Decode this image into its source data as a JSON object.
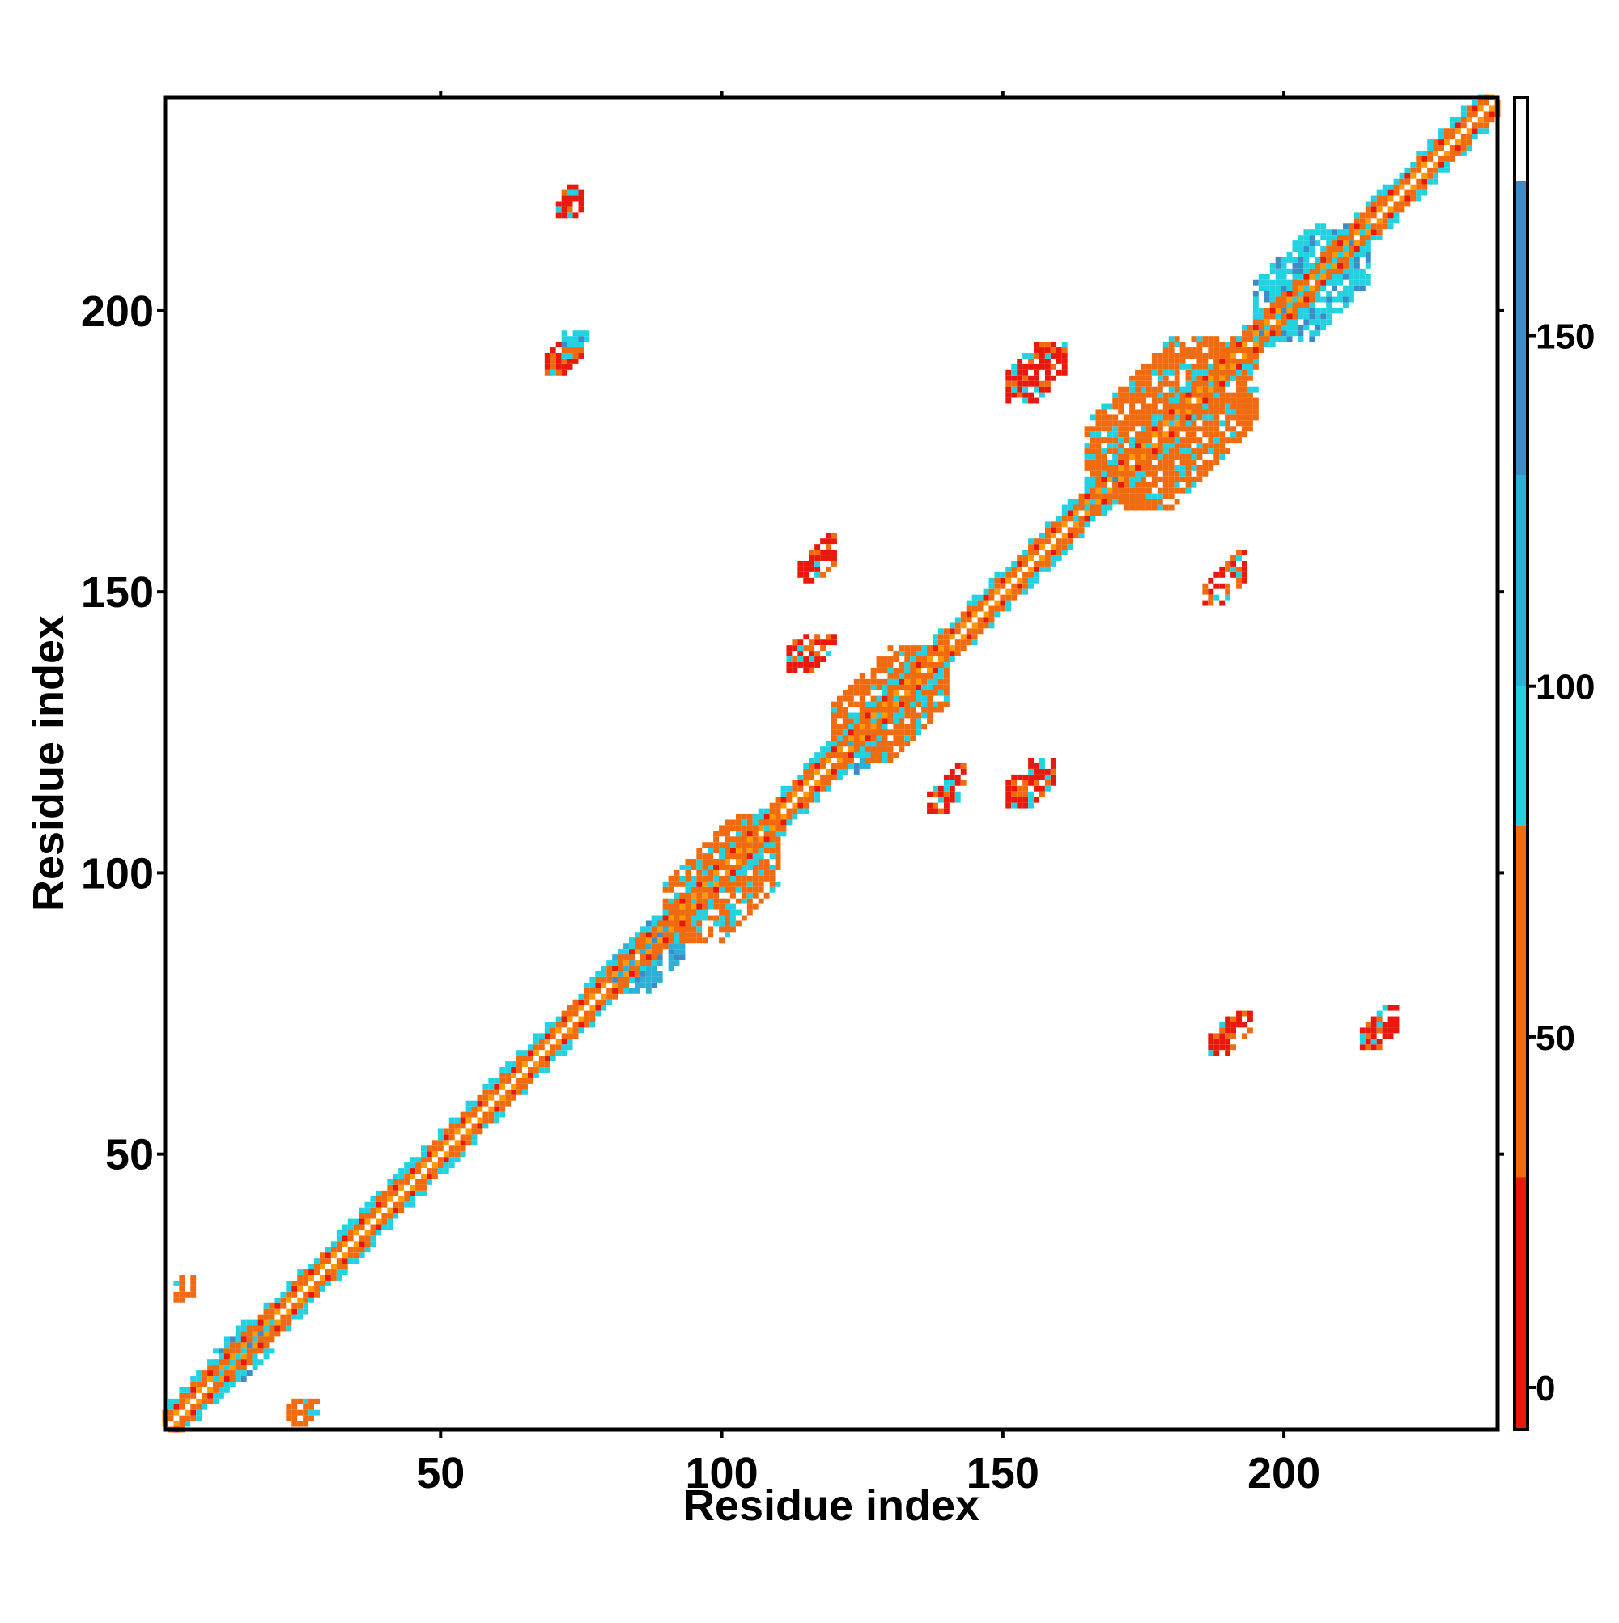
{
  "chart_data": {
    "type": "heatmap",
    "title": "",
    "xlabel": "Residue index",
    "ylabel": "Residue index",
    "xlim": [
      1,
      238
    ],
    "ylim": [
      1,
      238
    ],
    "xticks": [
      50,
      100,
      150,
      200
    ],
    "yticks": [
      50,
      100,
      150,
      200
    ],
    "colorbar": {
      "range": [
        -6,
        184
      ],
      "ticks": [
        0,
        50,
        100,
        150
      ],
      "bands": [
        {
          "from": -6,
          "to": 30,
          "color": "#e8180c"
        },
        {
          "from": 30,
          "to": 80,
          "color": "#f06a10"
        },
        {
          "from": 80,
          "to": 100,
          "color": "#22d2e0"
        },
        {
          "from": 100,
          "to": 130,
          "color": "#2cb0d8"
        },
        {
          "from": 130,
          "to": 172,
          "color": "#3c8cc8"
        },
        {
          "from": 172,
          "to": 184,
          "color": "#ffffff"
        }
      ]
    },
    "diagonal": {
      "from": 1,
      "to": 238,
      "colors": [
        "#e8180c",
        "#f06a10",
        "#ff9a00",
        "#22d2e0"
      ]
    },
    "off_diagonal_features": [
      {
        "x": [
          71,
          75
        ],
        "y": [
          217,
          222
        ],
        "value": 20
      },
      {
        "x": [
          69,
          75
        ],
        "y": [
          189,
          194
        ],
        "value": 15
      },
      {
        "x": [
          72,
          76
        ],
        "y": [
          194,
          196
        ],
        "value": 90
      },
      {
        "x": [
          3,
          6
        ],
        "y": [
          24,
          28
        ],
        "value": 40
      },
      {
        "x": [
          23,
          28
        ],
        "y": [
          2,
          6
        ],
        "value": 40
      },
      {
        "x": [
          114,
          120
        ],
        "y": [
          152,
          160
        ],
        "value": 15
      },
      {
        "x": [
          112,
          120
        ],
        "y": [
          136,
          142
        ],
        "value": 25
      },
      {
        "x": [
          137,
          143
        ],
        "y": [
          111,
          119
        ],
        "value": 20
      },
      {
        "x": [
          151,
          159
        ],
        "y": [
          112,
          120
        ],
        "value": 15
      },
      {
        "x": [
          151,
          161
        ],
        "y": [
          184,
          194
        ],
        "value": 20
      },
      {
        "x": [
          186,
          193
        ],
        "y": [
          148,
          158
        ],
        "value": 15
      },
      {
        "x": [
          187,
          194
        ],
        "y": [
          68,
          75
        ],
        "value": 15
      },
      {
        "x": [
          214,
          220
        ],
        "y": [
          69,
          76
        ],
        "value": 20
      },
      {
        "x": [
          81,
          93
        ],
        "y": [
          79,
          92
        ],
        "value": 110
      },
      {
        "x": [
          121,
          129
        ],
        "y": [
          118,
          127
        ],
        "value": 110
      },
      {
        "x": [
          90,
          110
        ],
        "y": [
          88,
          110
        ],
        "value": 60
      },
      {
        "x": [
          120,
          140
        ],
        "y": [
          120,
          140
        ],
        "value": 60
      },
      {
        "x": [
          165,
          195
        ],
        "y": [
          165,
          195
        ],
        "value": 60
      },
      {
        "x": [
          195,
          215
        ],
        "y": [
          195,
          215
        ],
        "value": 85
      },
      {
        "x": [
          10,
          20
        ],
        "y": [
          10,
          20
        ],
        "value": 85
      },
      {
        "x": [
          163,
          170
        ],
        "y": [
          163,
          170
        ],
        "value": 90
      }
    ]
  }
}
